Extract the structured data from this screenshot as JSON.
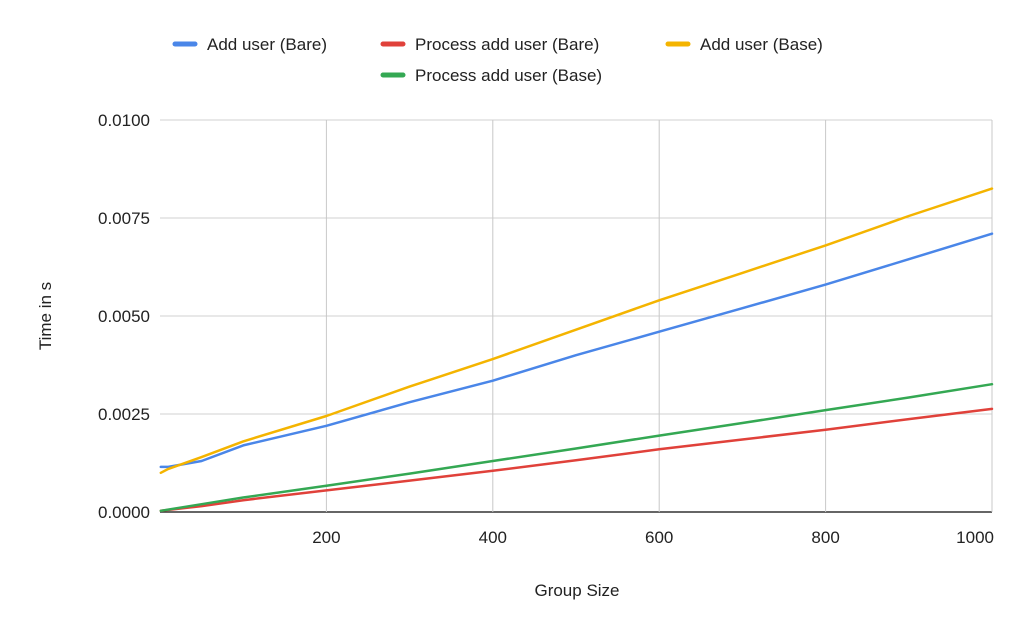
{
  "chart_data": {
    "type": "line",
    "title": "",
    "xlabel": "Group Size",
    "ylabel": "Time in s",
    "xlim": [
      0,
      1000
    ],
    "ylim": [
      0,
      0.01
    ],
    "x_ticks": [
      200,
      400,
      600,
      800,
      1000
    ],
    "x_tick_labels": [
      "200",
      "400",
      "600",
      "800",
      "1000"
    ],
    "y_ticks": [
      0,
      0.0025,
      0.005,
      0.0075,
      0.01
    ],
    "y_tick_labels": [
      "0.0000",
      "0.0025",
      "0.0050",
      "0.0075",
      "0.0100"
    ],
    "grid": true,
    "legend_position": "top",
    "series": [
      {
        "name": "Add user (Bare)",
        "color": "#4a86e8",
        "x": [
          1,
          10,
          50,
          100,
          200,
          300,
          400,
          500,
          600,
          700,
          800,
          900,
          1000
        ],
        "y": [
          0.00115,
          0.00115,
          0.0013,
          0.0017,
          0.0022,
          0.0028,
          0.00335,
          0.004,
          0.0046,
          0.0052,
          0.0058,
          0.00645,
          0.0071
        ]
      },
      {
        "name": "Process add user (Bare)",
        "color": "#e0413a",
        "x": [
          1,
          50,
          100,
          200,
          300,
          400,
          500,
          600,
          700,
          800,
          900,
          1000
        ],
        "y": [
          3e-05,
          0.00015,
          0.0003,
          0.00055,
          0.0008,
          0.00105,
          0.00132,
          0.0016,
          0.00185,
          0.0021,
          0.00237,
          0.00263
        ]
      },
      {
        "name": "Add user (Base)",
        "color": "#f4b400",
        "x": [
          1,
          10,
          50,
          100,
          200,
          300,
          400,
          500,
          600,
          700,
          800,
          900,
          1000
        ],
        "y": [
          0.001,
          0.0011,
          0.0014,
          0.0018,
          0.00245,
          0.0032,
          0.0039,
          0.00465,
          0.0054,
          0.0061,
          0.0068,
          0.00755,
          0.00825
        ]
      },
      {
        "name": "Process add user (Base)",
        "color": "#34a853",
        "x": [
          1,
          50,
          100,
          200,
          300,
          400,
          500,
          600,
          700,
          800,
          900,
          1000
        ],
        "y": [
          3e-05,
          0.0002,
          0.00037,
          0.00067,
          0.00098,
          0.0013,
          0.00162,
          0.00195,
          0.00227,
          0.0026,
          0.00292,
          0.00326
        ]
      }
    ]
  }
}
